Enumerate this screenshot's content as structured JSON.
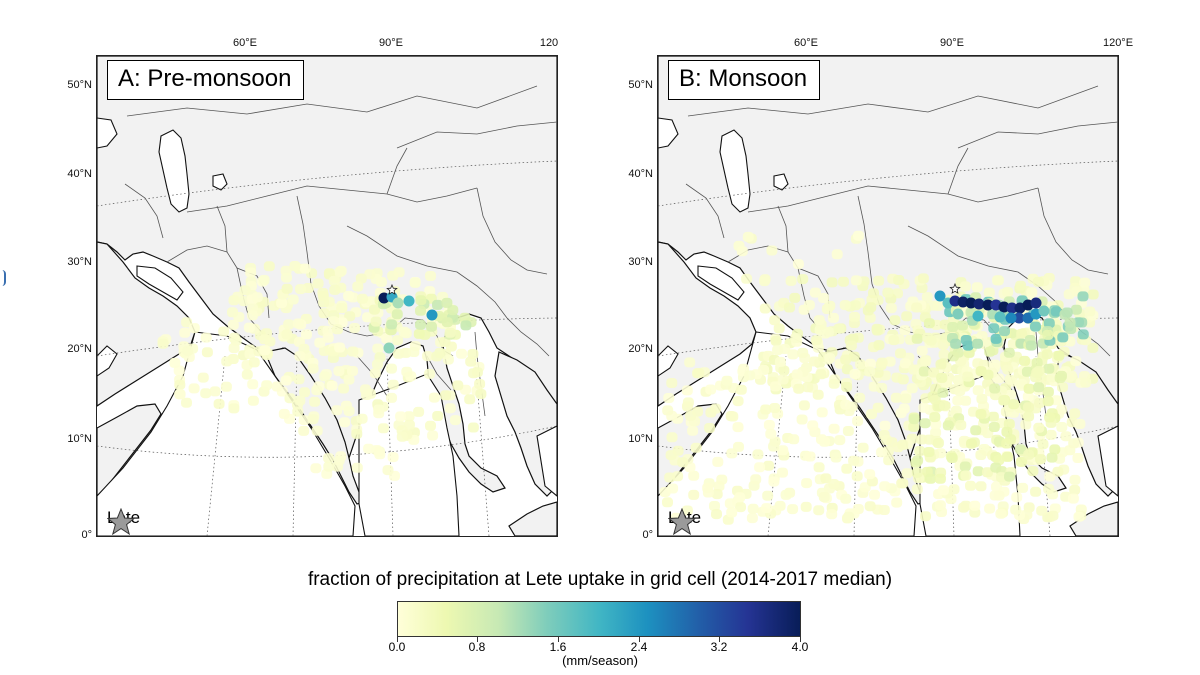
{
  "panels": [
    {
      "id": "A",
      "title_letter": "A:",
      "title_text": "Pre-monsoon",
      "lon_ticks": [
        "60°E",
        "90°E",
        "120"
      ],
      "lat_ticks": [
        "50°N",
        "40°N",
        "30°N",
        "20°N",
        "10°N",
        "0°"
      ],
      "legend_label": "Lete"
    },
    {
      "id": "B",
      "title_letter": "B:",
      "title_text": "Monsoon",
      "lon_ticks": [
        "60°E",
        "90°E",
        "120°E"
      ],
      "lat_ticks": [
        "50°N",
        "40°N",
        "30°N",
        "20°N",
        "10°N",
        "0°"
      ],
      "legend_label": "Lete"
    }
  ],
  "colorbar": {
    "title": "fraction of precipitation at Lete uptake in grid cell (2014-2017  median)",
    "ticks": [
      "0.0",
      "0.8",
      "1.6",
      "2.4",
      "3.2",
      "4.0"
    ],
    "unit": "(mm/season)",
    "range": [
      0,
      4.0
    ],
    "colors": [
      "#ffffd9",
      "#edf8b1",
      "#c7e9b4",
      "#7fcdbb",
      "#41b6c4",
      "#1d91c0",
      "#225ea8",
      "#253494",
      "#081d58"
    ]
  },
  "colors": {
    "land": "#f2f2f2",
    "ocean": "#ffffff",
    "coast": "#111111",
    "border": "#555555",
    "low": "#ffffd9",
    "high": "#081d58"
  },
  "icons": {
    "site_marker": "star-icon"
  }
}
